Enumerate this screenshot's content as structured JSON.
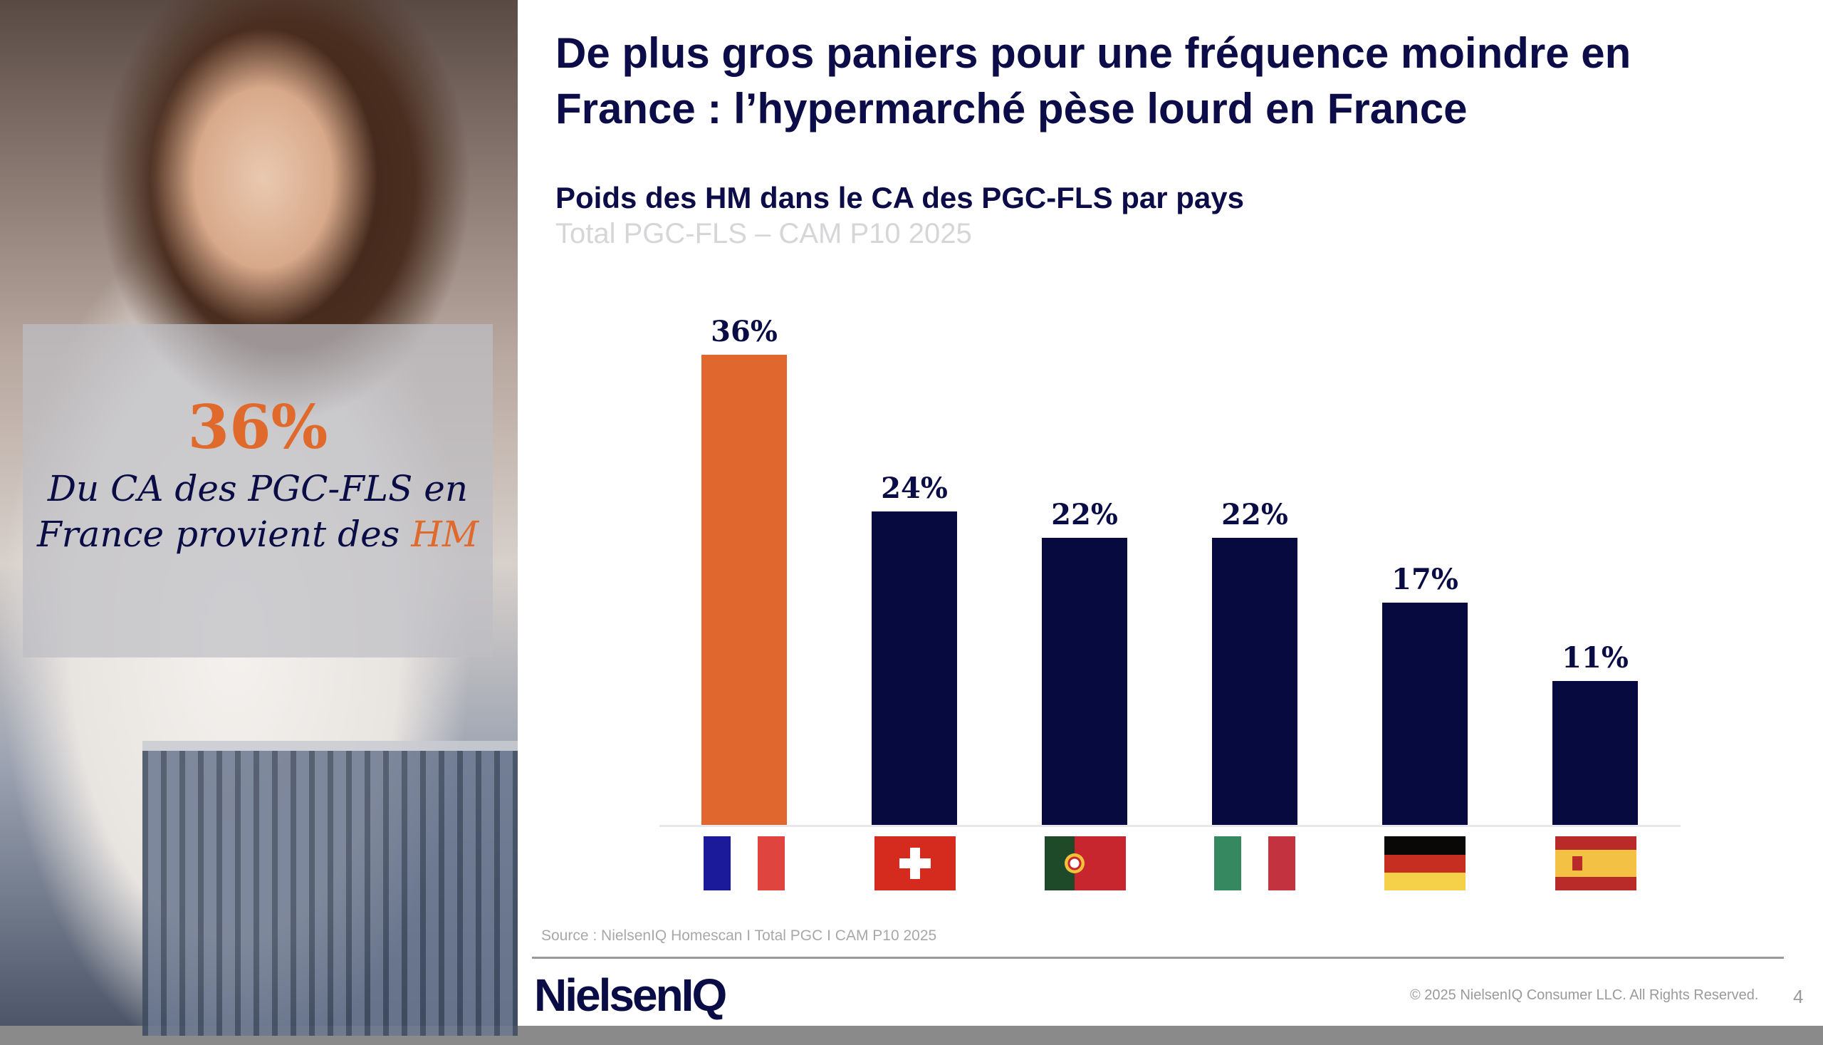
{
  "title": "De plus gros paniers pour une fréquence moindre en France : l’hypermarché pèse lourd en France",
  "callout": {
    "value": "36%",
    "text": "Du CA des PGC-FLS en France provient des",
    "highlight": "HM"
  },
  "chart_data": {
    "type": "bar",
    "title": "Poids des HM dans le CA des PGC-FLS par pays",
    "subtitle": "Total PGC-FLS – CAM P10 2025",
    "categories": [
      "France",
      "Suisse",
      "Portugal",
      "Italie",
      "Allemagne",
      "Espagne"
    ],
    "values": [
      36,
      24,
      22,
      22,
      17,
      11
    ],
    "labels": [
      "36%",
      "24%",
      "22%",
      "22%",
      "17%",
      "11%"
    ],
    "unit": "%",
    "ylim": [
      0,
      36
    ],
    "colors": [
      "#e0682e",
      "#060a3f",
      "#060a3f",
      "#060a3f",
      "#060a3f",
      "#060a3f"
    ],
    "grid": false,
    "xlabel": "",
    "ylabel": ""
  },
  "footer": {
    "source": "Source : NielsenIQ Homescan I Total PGC I CAM P10 2025",
    "logo": "NielsenIQ",
    "copyright": "© 2025 NielsenIQ Consumer LLC. All Rights Reserved.",
    "page": "4"
  }
}
